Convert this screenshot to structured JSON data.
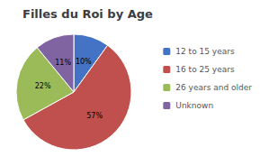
{
  "chart_data": {
    "type": "pie",
    "title": "Filles du Roi by Age",
    "categories": [
      "12 to 15 years",
      "16 to 25 years",
      "26 years and older",
      "Unknown"
    ],
    "values": [
      10,
      57,
      22,
      11
    ],
    "value_labels": [
      "10%",
      "57%",
      "22%",
      "11%"
    ],
    "colors": [
      "#4472C4",
      "#C0504D",
      "#9BBB59",
      "#8064A2"
    ],
    "data_labels": true,
    "legend": "right"
  }
}
